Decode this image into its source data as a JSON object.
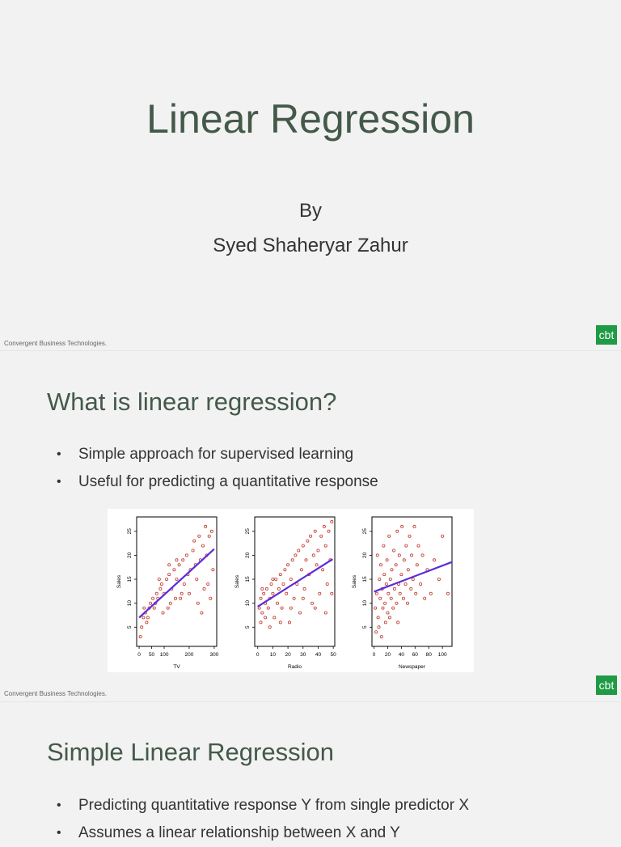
{
  "slide1": {
    "title": "Linear Regression",
    "by": "By",
    "author": "Syed Shaheryar Zahur",
    "footer": "Convergent Business Technologies.",
    "logo": "cbt"
  },
  "slide2": {
    "heading": "What is linear regression?",
    "bullets": [
      "Simple approach for supervised learning",
      "Useful for predicting a quantitative response"
    ],
    "footer": "Convergent Business Technologies.",
    "logo": "cbt"
  },
  "slide3": {
    "heading": "Simple Linear Regression",
    "bullets": [
      "Predicting quantitative response Y from single predictor X",
      "Assumes a linear relationship between X and Y"
    ]
  },
  "colors": {
    "title": "#44594a",
    "logo_bg": "#1f9a45",
    "points": "#c0392b",
    "fit_line": "#5b2bd9"
  },
  "chart_data": [
    {
      "type": "scatter",
      "xlabel": "TV",
      "ylabel": "Sales",
      "xticks": [
        "0",
        "50",
        "100",
        "200",
        "300"
      ],
      "xtick_values": [
        0,
        50,
        100,
        200,
        300
      ],
      "yticks": [
        "5",
        "10",
        "15",
        "20",
        "25"
      ],
      "ytick_values": [
        5,
        10,
        15,
        20,
        25
      ],
      "xlim": [
        -10,
        310
      ],
      "ylim": [
        1,
        28
      ],
      "fit": [
        [
          0,
          7.0
        ],
        [
          300,
          21.3
        ]
      ],
      "points": [
        [
          10,
          5
        ],
        [
          17,
          7
        ],
        [
          25,
          8
        ],
        [
          30,
          6
        ],
        [
          40,
          9
        ],
        [
          45,
          10
        ],
        [
          55,
          11
        ],
        [
          60,
          9
        ],
        [
          70,
          12
        ],
        [
          75,
          11
        ],
        [
          85,
          13
        ],
        [
          90,
          14
        ],
        [
          100,
          12
        ],
        [
          110,
          15
        ],
        [
          120,
          16
        ],
        [
          125,
          10
        ],
        [
          130,
          13
        ],
        [
          140,
          17
        ],
        [
          150,
          15
        ],
        [
          160,
          18
        ],
        [
          165,
          11
        ],
        [
          175,
          19
        ],
        [
          180,
          14
        ],
        [
          190,
          20
        ],
        [
          200,
          12
        ],
        [
          205,
          17
        ],
        [
          215,
          21
        ],
        [
          220,
          23
        ],
        [
          230,
          15
        ],
        [
          235,
          10
        ],
        [
          240,
          24
        ],
        [
          245,
          19
        ],
        [
          255,
          22
        ],
        [
          260,
          13
        ],
        [
          265,
          26
        ],
        [
          270,
          20
        ],
        [
          280,
          24
        ],
        [
          285,
          11
        ],
        [
          290,
          25
        ],
        [
          295,
          17
        ],
        [
          5,
          3
        ],
        [
          20,
          9
        ],
        [
          35,
          7
        ],
        [
          65,
          10
        ],
        [
          95,
          8
        ],
        [
          115,
          9
        ],
        [
          145,
          11
        ],
        [
          170,
          12
        ],
        [
          195,
          16
        ],
        [
          225,
          18
        ],
        [
          250,
          8
        ],
        [
          275,
          14
        ],
        [
          150,
          19
        ],
        [
          120,
          18
        ],
        [
          80,
          15
        ]
      ]
    },
    {
      "type": "scatter",
      "xlabel": "Radio",
      "ylabel": "Sales",
      "xticks": [
        "0",
        "10",
        "20",
        "30",
        "40",
        "50"
      ],
      "xtick_values": [
        0,
        10,
        20,
        30,
        40,
        50
      ],
      "yticks": [
        "5",
        "10",
        "15",
        "20",
        "25"
      ],
      "ytick_values": [
        5,
        10,
        15,
        20,
        25
      ],
      "xlim": [
        -2,
        51
      ],
      "ylim": [
        1,
        28
      ],
      "fit": [
        [
          0,
          9.3
        ],
        [
          49.6,
          19.2
        ]
      ],
      "points": [
        [
          1,
          9
        ],
        [
          2,
          11
        ],
        [
          3,
          8
        ],
        [
          4,
          12
        ],
        [
          5,
          10
        ],
        [
          6,
          13
        ],
        [
          7,
          9
        ],
        [
          8,
          11
        ],
        [
          9,
          14
        ],
        [
          10,
          12
        ],
        [
          11,
          7
        ],
        [
          12,
          15
        ],
        [
          13,
          10
        ],
        [
          14,
          13
        ],
        [
          15,
          16
        ],
        [
          16,
          9
        ],
        [
          17,
          14
        ],
        [
          18,
          17
        ],
        [
          19,
          12
        ],
        [
          20,
          18
        ],
        [
          21,
          6
        ],
        [
          22,
          15
        ],
        [
          23,
          19
        ],
        [
          24,
          11
        ],
        [
          25,
          20
        ],
        [
          26,
          14
        ],
        [
          27,
          21
        ],
        [
          28,
          8
        ],
        [
          29,
          17
        ],
        [
          30,
          22
        ],
        [
          31,
          13
        ],
        [
          32,
          19
        ],
        [
          33,
          23
        ],
        [
          34,
          16
        ],
        [
          35,
          24
        ],
        [
          36,
          10
        ],
        [
          37,
          20
        ],
        [
          38,
          25
        ],
        [
          39,
          18
        ],
        [
          40,
          21
        ],
        [
          41,
          12
        ],
        [
          42,
          24
        ],
        [
          43,
          17
        ],
        [
          44,
          26
        ],
        [
          45,
          22
        ],
        [
          46,
          14
        ],
        [
          47,
          25
        ],
        [
          48,
          19
        ],
        [
          49,
          27
        ],
        [
          2,
          6
        ],
        [
          5,
          7
        ],
        [
          8,
          5
        ],
        [
          15,
          6
        ],
        [
          22,
          9
        ],
        [
          30,
          11
        ],
        [
          38,
          9
        ],
        [
          45,
          8
        ],
        [
          49,
          12
        ],
        [
          3,
          13
        ],
        [
          10,
          15
        ]
      ]
    },
    {
      "type": "scatter",
      "xlabel": "Newspaper",
      "ylabel": "Sales",
      "xticks": [
        "0",
        "20",
        "40",
        "60",
        "80",
        "100"
      ],
      "xtick_values": [
        0,
        20,
        40,
        60,
        80,
        100
      ],
      "yticks": [
        "5",
        "10",
        "15",
        "20",
        "25"
      ],
      "ytick_values": [
        5,
        10,
        15,
        20,
        25
      ],
      "xlim": [
        -3,
        114
      ],
      "ylim": [
        1,
        28
      ],
      "fit": [
        [
          0,
          12.4
        ],
        [
          114,
          18.6
        ]
      ],
      "points": [
        [
          2,
          9
        ],
        [
          4,
          12
        ],
        [
          5,
          20
        ],
        [
          6,
          7
        ],
        [
          8,
          15
        ],
        [
          9,
          11
        ],
        [
          10,
          18
        ],
        [
          12,
          13
        ],
        [
          13,
          9
        ],
        [
          14,
          22
        ],
        [
          15,
          16
        ],
        [
          16,
          10
        ],
        [
          18,
          14
        ],
        [
          19,
          19
        ],
        [
          20,
          8
        ],
        [
          21,
          12
        ],
        [
          22,
          24
        ],
        [
          24,
          15
        ],
        [
          25,
          11
        ],
        [
          26,
          17
        ],
        [
          28,
          9
        ],
        [
          29,
          21
        ],
        [
          30,
          13
        ],
        [
          32,
          18
        ],
        [
          33,
          10
        ],
        [
          34,
          25
        ],
        [
          36,
          14
        ],
        [
          37,
          20
        ],
        [
          38,
          12
        ],
        [
          40,
          16
        ],
        [
          41,
          26
        ],
        [
          43,
          11
        ],
        [
          44,
          19
        ],
        [
          46,
          14
        ],
        [
          47,
          22
        ],
        [
          49,
          10
        ],
        [
          50,
          17
        ],
        [
          52,
          24
        ],
        [
          54,
          13
        ],
        [
          55,
          20
        ],
        [
          57,
          15
        ],
        [
          59,
          26
        ],
        [
          61,
          12
        ],
        [
          63,
          18
        ],
        [
          65,
          22
        ],
        [
          68,
          14
        ],
        [
          71,
          20
        ],
        [
          74,
          11
        ],
        [
          78,
          17
        ],
        [
          83,
          12
        ],
        [
          88,
          19
        ],
        [
          95,
          15
        ],
        [
          100,
          24
        ],
        [
          108,
          12
        ],
        [
          3,
          4
        ],
        [
          7,
          5
        ],
        [
          11,
          3
        ],
        [
          17,
          6
        ],
        [
          23,
          7
        ],
        [
          35,
          6
        ]
      ]
    }
  ]
}
